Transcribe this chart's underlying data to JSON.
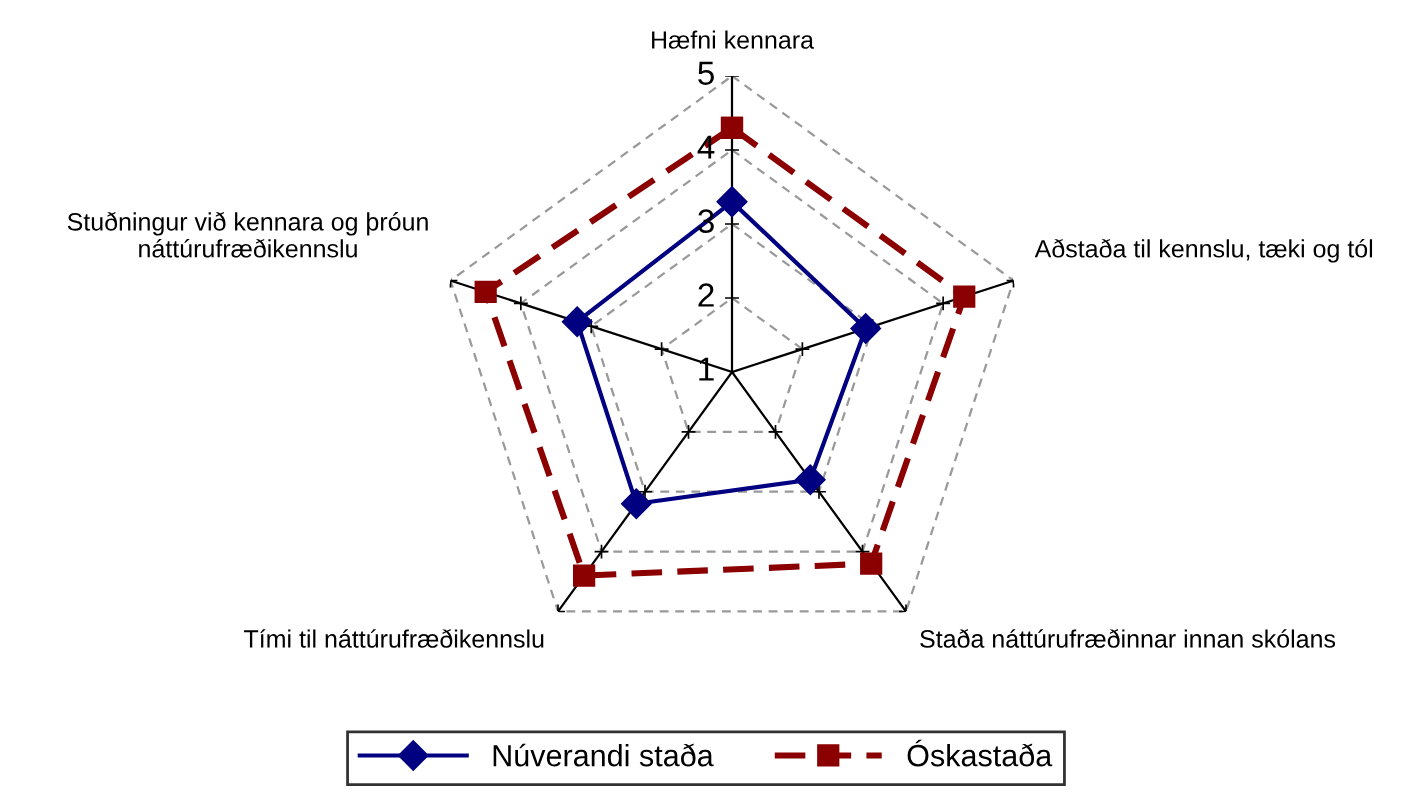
{
  "chart_data": {
    "type": "radar",
    "categories": [
      "Hæfni kennara",
      "Aðstaða til kennslu, tæki og tól",
      "Staða náttúrufræðinnar innan skólans",
      "Tími til náttúrufræðikennslu",
      "Stuðningur við kennara og þróun\nnáttúrufræðikennslu"
    ],
    "series": [
      {
        "name": "Núverandi staða",
        "color": "#000080",
        "values": [
          3.3,
          2.9,
          2.8,
          3.2,
          3.2
        ],
        "marker": "diamond",
        "line_style": "solid"
      },
      {
        "name": "Óskastaða",
        "color": "#8b0000",
        "values": [
          4.3,
          4.3,
          4.2,
          4.4,
          4.5
        ],
        "marker": "square",
        "line_style": "dashed"
      }
    ],
    "ylim": [
      1,
      5
    ],
    "yticks": [
      1,
      2,
      3,
      4,
      5
    ],
    "grid": true,
    "legend": "bottom"
  }
}
